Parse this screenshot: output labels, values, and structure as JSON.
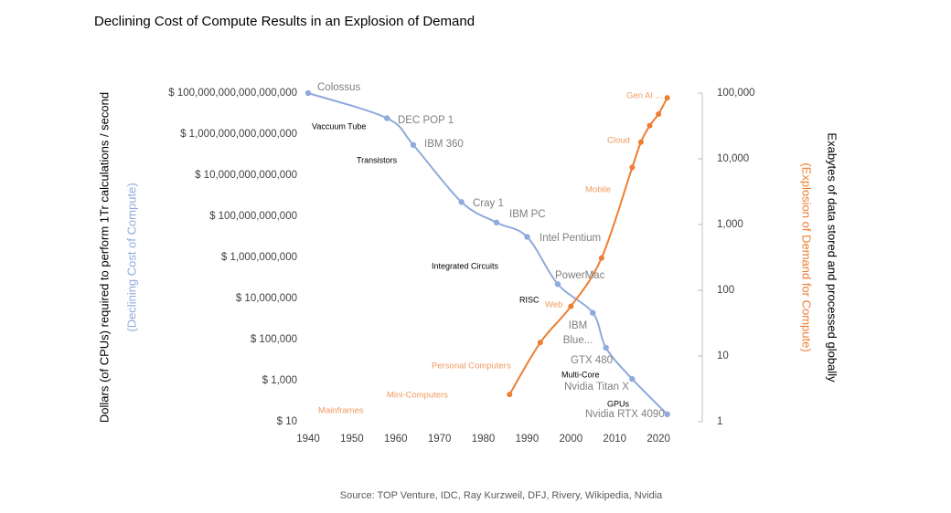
{
  "chart_data": {
    "type": "line",
    "title": "Declining Cost of Compute Results in an Explosion of Demand",
    "y_label": "Dollars (of CPUs) required to perform 1Tr calculations / second",
    "y_sublabel": "(Declining Cost of Compute)",
    "y2_label": "Exabytes of data stored and processed globally",
    "y2_sublabel": "(Explosion of Demand for Compute)",
    "source": "Source: TOP Venture, IDC, Ray Kurzweil, DFJ, Rivery, Wikipedia, Nvidia",
    "xlim": [
      1940,
      2030
    ],
    "xticks": [
      1940,
      1950,
      1960,
      1970,
      1980,
      1990,
      2000,
      2010,
      2020
    ],
    "ylog": true,
    "ylim": [
      10,
      100000000000000000
    ],
    "yticks": [
      {
        "value": 10,
        "label": "$ 10"
      },
      {
        "value": 1000,
        "label": "$ 1,000"
      },
      {
        "value": 100000,
        "label": "$ 100,000"
      },
      {
        "value": 10000000,
        "label": "$ 10,000,000"
      },
      {
        "value": 1000000000,
        "label": "$ 1,000,000,000"
      },
      {
        "value": 100000000000,
        "label": "$ 100,000,000,000"
      },
      {
        "value": 10000000000000,
        "label": "$ 10,000,000,000,000"
      },
      {
        "value": 1000000000000000,
        "label": "$ 1,000,000,000,000,000"
      },
      {
        "value": 100000000000000000,
        "label": "$ 100,000,000,000,000,000"
      }
    ],
    "y2log": true,
    "y2lim": [
      1,
      100000
    ],
    "y2ticks": [
      1,
      10,
      100,
      {
        "value": 1000,
        "label": "1,000"
      },
      {
        "value": 10000,
        "label": "10,000"
      },
      {
        "value": 100000,
        "label": "100,000"
      }
    ],
    "series": [
      {
        "color": "#8faadc",
        "axis": "y",
        "x": [
          1940,
          1958,
          1964,
          1975,
          1983,
          1990,
          1997,
          2005,
          2008,
          2014,
          2022
        ],
        "values": [
          100000000000000000,
          6000000000000000,
          300000000000000,
          500000000000,
          50000000000,
          10000000000,
          50000000,
          2000000,
          40000,
          1200,
          23
        ],
        "labels": [
          "Colossus",
          "DEC POP 1",
          "IBM 360",
          "Cray 1",
          "IBM PC",
          "Intel Pentium",
          "PowerMac",
          "IBM Blue...",
          "GTX 480",
          "Nvidia Titan X",
          "Nvidia RTX 4090"
        ]
      },
      {
        "color": "#ed7d31",
        "axis": "y2",
        "x": [
          1986,
          1993,
          2000,
          2007,
          2014,
          2016,
          2018,
          2020,
          2022
        ],
        "values": [
          2.6,
          16,
          57,
          310,
          7400,
          18000,
          32000,
          48000,
          85000
        ]
      }
    ],
    "era_labels": [
      "Gen AI ...",
      "Cloud",
      "Mobile",
      "Web",
      "Personal  Computers",
      "Mini-Computers",
      "Mainframes"
    ],
    "tech_labels": [
      "Vaccuum Tube",
      "Transistors",
      "Integrated Circuits",
      "RISC",
      "Multi-Core",
      "GPUs"
    ]
  }
}
